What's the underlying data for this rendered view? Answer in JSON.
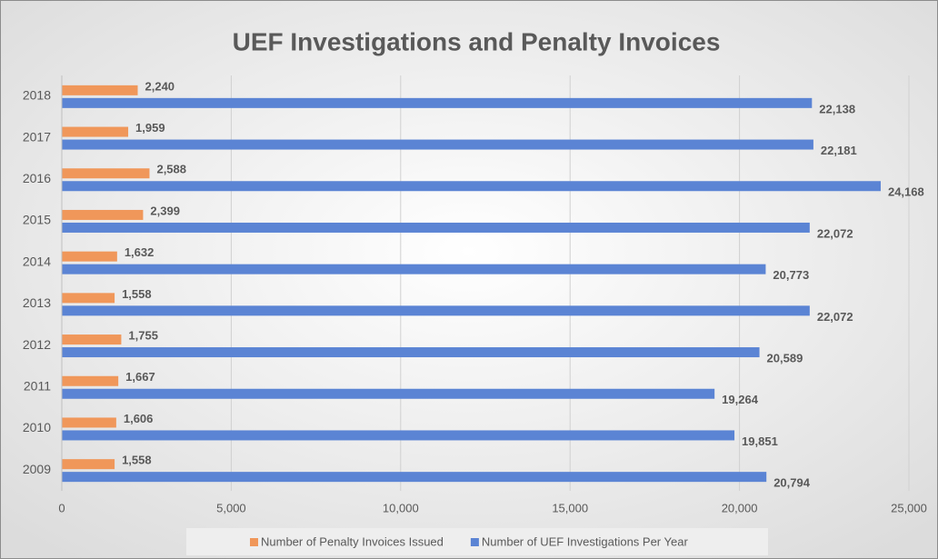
{
  "chart_data": {
    "type": "hbar",
    "title": "UEF Investigations and Penalty Invoices",
    "categories": [
      "2009",
      "2010",
      "2011",
      "2012",
      "2013",
      "2014",
      "2015",
      "2016",
      "2017",
      "2018"
    ],
    "series": [
      {
        "name": "Number of Penalty Invoices Issued",
        "color": "#f0975a",
        "values": [
          1558,
          1606,
          1667,
          1755,
          1558,
          1632,
          2399,
          2588,
          1959,
          2240
        ],
        "value_labels": [
          "1,558",
          "1,606",
          "1,667",
          "1,755",
          "1,558",
          "1,632",
          "2,399",
          "2,588",
          "1,959",
          "2,240"
        ]
      },
      {
        "name": "Number of UEF Investigations Per Year",
        "color": "#5b84d4",
        "values": [
          20794,
          19851,
          19264,
          20589,
          22072,
          20773,
          22072,
          24168,
          22181,
          22138
        ],
        "value_labels": [
          "20,794",
          "19,851",
          "19,264",
          "20,589",
          "22,072",
          "20,773",
          "22,072",
          "24,168",
          "22,181",
          "22,138"
        ]
      }
    ],
    "xlim": [
      0,
      25000
    ],
    "xticks": [
      0,
      {
        "value": 5000,
        "label": "5,000"
      },
      {
        "value": 10000,
        "label": "10,000"
      },
      {
        "value": 15000,
        "label": "15,000"
      },
      {
        "value": 20000,
        "label": "20,000"
      },
      {
        "value": 25000,
        "label": "25,000"
      }
    ],
    "grid": true,
    "legend": "bottom"
  }
}
